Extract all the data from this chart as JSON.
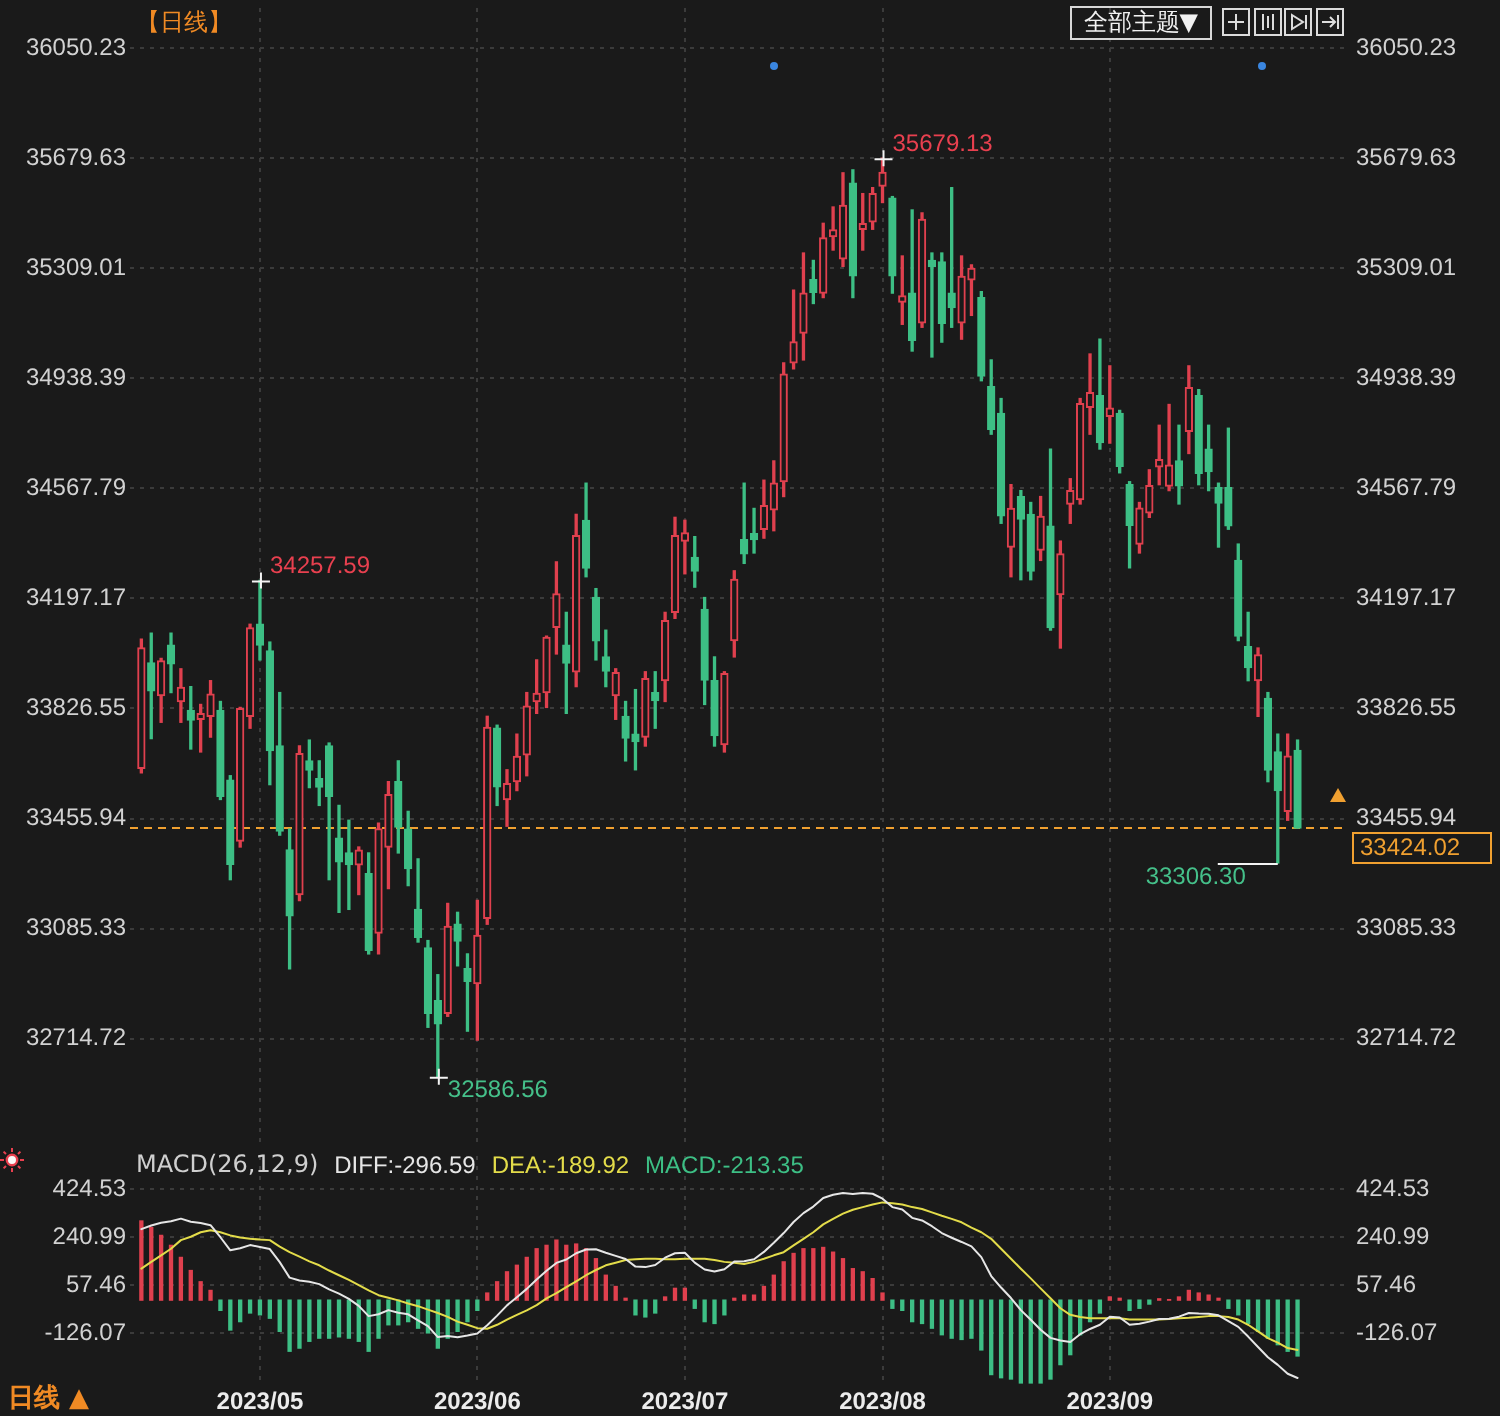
{
  "chart_data": [
    {
      "type": "candlestick",
      "title": "【日线】",
      "categories": [
        null,
        null,
        null,
        null,
        null,
        null,
        null,
        null,
        null,
        null,
        null,
        null,
        "2023/05",
        null,
        null,
        null,
        null,
        null,
        null,
        null,
        null,
        null,
        null,
        null,
        null,
        null,
        null,
        null,
        null,
        null,
        null,
        null,
        null,
        null,
        "2023/06",
        null,
        null,
        null,
        null,
        null,
        null,
        null,
        null,
        null,
        null,
        null,
        null,
        null,
        null,
        null,
        null,
        null,
        null,
        null,
        null,
        "2023/07",
        null,
        null,
        null,
        null,
        null,
        null,
        null,
        null,
        null,
        null,
        null,
        null,
        null,
        null,
        null,
        null,
        null,
        null,
        null,
        "2023/08",
        null,
        null,
        null,
        null,
        null,
        null,
        null,
        null,
        null,
        null,
        null,
        null,
        null,
        null,
        null,
        null,
        null,
        null,
        null,
        null,
        null,
        null,
        "2023/09",
        null,
        null,
        null,
        null,
        null,
        null,
        null,
        null,
        null,
        null,
        null,
        null,
        null,
        null,
        null,
        null,
        null,
        null,
        null
      ],
      "ohlc": [
        [
          33625,
          34060,
          33610,
          34030
        ],
        [
          33980,
          34080,
          33725,
          33886
        ],
        [
          33870,
          33995,
          33780,
          33987
        ],
        [
          34040,
          34080,
          33880,
          33977
        ],
        [
          33850,
          33960,
          33780,
          33897
        ],
        [
          33820,
          33900,
          33690,
          33787
        ],
        [
          33790,
          33840,
          33680,
          33809
        ],
        [
          33800,
          33920,
          33730,
          33875
        ],
        [
          33820,
          33850,
          33520,
          33531
        ],
        [
          33585,
          33600,
          33250,
          33302
        ],
        [
          33380,
          33830,
          33360,
          33826
        ],
        [
          33800,
          34110,
          33760,
          34098
        ],
        [
          34110,
          34257.59,
          33990,
          34040
        ],
        [
          34020,
          34050,
          33570,
          33685
        ],
        [
          33700,
          33880,
          33400,
          33414
        ],
        [
          33350,
          33420,
          32950,
          33128
        ],
        [
          33200,
          33700,
          33180,
          33674
        ],
        [
          33650,
          33720,
          33560,
          33619
        ],
        [
          33590,
          33650,
          33500,
          33562
        ],
        [
          33700,
          33710,
          33250,
          33531
        ],
        [
          33390,
          33500,
          33140,
          33310
        ],
        [
          33340,
          33450,
          33150,
          33301
        ],
        [
          33300,
          33360,
          33200,
          33349
        ],
        [
          33270,
          33340,
          33000,
          33012
        ],
        [
          33070,
          33440,
          33000,
          33421
        ],
        [
          33360,
          33580,
          33220,
          33536
        ],
        [
          33580,
          33650,
          33340,
          33427
        ],
        [
          33420,
          33480,
          33230,
          33287
        ],
        [
          33150,
          33320,
          33040,
          33056
        ],
        [
          33020,
          33045,
          32753,
          32800
        ],
        [
          32843,
          32930,
          32586.56,
          32765
        ],
        [
          32800,
          33170,
          32790,
          33093
        ],
        [
          33100,
          33140,
          32960,
          33043
        ],
        [
          32950,
          33000,
          32740,
          32908
        ],
        [
          32900,
          33180,
          32710,
          33062
        ],
        [
          33120,
          33800,
          33100,
          33763
        ],
        [
          33760,
          33770,
          33500,
          33563
        ],
        [
          33520,
          33620,
          33430,
          33573
        ],
        [
          33580,
          33740,
          33550,
          33665
        ],
        [
          33670,
          33880,
          33600,
          33834
        ],
        [
          33850,
          33990,
          33810,
          33877
        ],
        [
          33880,
          34070,
          33830,
          34066
        ],
        [
          34100,
          34320,
          34010,
          34212
        ],
        [
          34040,
          34150,
          33810,
          33979
        ],
        [
          33950,
          34480,
          33900,
          34408
        ],
        [
          34460,
          34585,
          34270,
          34299
        ],
        [
          34200,
          34230,
          33990,
          34054
        ],
        [
          34000,
          34090,
          33900,
          33952
        ],
        [
          33870,
          33960,
          33790,
          33947
        ],
        [
          33800,
          33850,
          33650,
          33727
        ],
        [
          33740,
          33890,
          33620,
          33715
        ],
        [
          33730,
          33950,
          33700,
          33927
        ],
        [
          33880,
          33950,
          33760,
          33853
        ],
        [
          33920,
          34150,
          33850,
          34122
        ],
        [
          34150,
          34470,
          34130,
          34408
        ],
        [
          34390,
          34460,
          34280,
          34418
        ],
        [
          34335,
          34405,
          34235,
          34289
        ],
        [
          34160,
          34200,
          33840,
          33922
        ],
        [
          33920,
          34000,
          33700,
          33735
        ],
        [
          33705,
          33950,
          33680,
          33944
        ],
        [
          34055,
          34290,
          34000,
          34261
        ],
        [
          34395,
          34585,
          34315,
          34347
        ],
        [
          34415,
          34500,
          34350,
          34395
        ],
        [
          34430,
          34595,
          34400,
          34509
        ],
        [
          34495,
          34660,
          34425,
          34585
        ],
        [
          34590,
          34990,
          34540,
          34952
        ],
        [
          34990,
          35235,
          34970,
          35061
        ],
        [
          35090,
          35360,
          35000,
          35225
        ],
        [
          35270,
          35335,
          35190,
          35228
        ],
        [
          35225,
          35460,
          35210,
          35411
        ],
        [
          35415,
          35515,
          35370,
          35438
        ],
        [
          35340,
          35630,
          35315,
          35520
        ],
        [
          35595,
          35640,
          35210,
          35283
        ],
        [
          35440,
          35560,
          35370,
          35459
        ],
        [
          35465,
          35580,
          35440,
          35560
        ],
        [
          35585,
          35679.13,
          35530,
          35631
        ],
        [
          35545,
          35550,
          35225,
          35283
        ],
        [
          35195,
          35350,
          35120,
          35216
        ],
        [
          35225,
          35505,
          35030,
          35066
        ],
        [
          35125,
          35495,
          35110,
          35473
        ],
        [
          35335,
          35360,
          35010,
          35314
        ],
        [
          35330,
          35360,
          35060,
          35123
        ],
        [
          35225,
          35580,
          35110,
          35176
        ],
        [
          35125,
          35350,
          35070,
          35281
        ],
        [
          35270,
          35320,
          35150,
          35308
        ],
        [
          35210,
          35230,
          34930,
          34946
        ],
        [
          34910,
          35000,
          34750,
          34766
        ],
        [
          34820,
          34870,
          34450,
          34475
        ],
        [
          34370,
          34580,
          34270,
          34500
        ],
        [
          34540,
          34560,
          34260,
          34464
        ],
        [
          34480,
          34520,
          34260,
          34289
        ],
        [
          34360,
          34540,
          34325,
          34473
        ],
        [
          34440,
          34700,
          34090,
          34099
        ],
        [
          34210,
          34390,
          34030,
          34347
        ],
        [
          34515,
          34600,
          34450,
          34560
        ],
        [
          34530,
          34870,
          34515,
          34853
        ],
        [
          34840,
          35020,
          34750,
          34890
        ],
        [
          34880,
          35070,
          34700,
          34722
        ],
        [
          34810,
          34980,
          34720,
          34838
        ],
        [
          34820,
          34830,
          34620,
          34642
        ],
        [
          34580,
          34590,
          34300,
          34443
        ],
        [
          34380,
          34520,
          34350,
          34501
        ],
        [
          34485,
          34630,
          34470,
          34577
        ],
        [
          34640,
          34780,
          34580,
          34664
        ],
        [
          34575,
          34850,
          34560,
          34646
        ],
        [
          34660,
          34780,
          34515,
          34576
        ],
        [
          34760,
          34980,
          34685,
          34907
        ],
        [
          34880,
          34900,
          34580,
          34618
        ],
        [
          34700,
          34780,
          34560,
          34624
        ],
        [
          34570,
          34585,
          34370,
          34518
        ],
        [
          34570,
          34770,
          34430,
          34441
        ],
        [
          34325,
          34380,
          34055,
          34070
        ],
        [
          34035,
          34150,
          33920,
          33964
        ],
        [
          33920,
          34030,
          33800,
          34007
        ],
        [
          33860,
          33880,
          33580,
          33619
        ],
        [
          33680,
          33740,
          33306.3,
          33550
        ],
        [
          33480,
          33740,
          33450,
          33666
        ],
        [
          33685,
          33720,
          33424.02,
          33424.02
        ]
      ],
      "colors": [
        "#e0404e",
        "#3dbf85",
        "#e0404e",
        "#3dbf85",
        "#e0404e",
        "#3dbf85",
        "#e0404e",
        "#e0404e",
        "#3dbf85",
        "#3dbf85",
        "#e0404e",
        "#e0404e",
        "#3dbf85",
        "#3dbf85",
        "#3dbf85",
        "#3dbf85",
        "#e0404e",
        "#3dbf85",
        "#3dbf85",
        "#3dbf85",
        "#3dbf85",
        "#3dbf85",
        "#e0404e",
        "#3dbf85",
        "#e0404e",
        "#e0404e",
        "#3dbf85",
        "#3dbf85",
        "#3dbf85",
        "#3dbf85",
        "#3dbf85",
        "#e0404e",
        "#3dbf85",
        "#3dbf85",
        "#e0404e",
        "#e0404e",
        "#3dbf85",
        "#e0404e",
        "#e0404e",
        "#e0404e",
        "#e0404e",
        "#e0404e",
        "#e0404e",
        "#3dbf85",
        "#e0404e",
        "#3dbf85",
        "#3dbf85",
        "#3dbf85",
        "#e0404e",
        "#3dbf85",
        "#3dbf85",
        "#e0404e",
        "#3dbf85",
        "#e0404e",
        "#e0404e",
        "#e0404e",
        "#3dbf85",
        "#3dbf85",
        "#3dbf85",
        "#e0404e",
        "#e0404e",
        "#3dbf85",
        "#3dbf85",
        "#e0404e",
        "#e0404e",
        "#e0404e",
        "#e0404e",
        "#e0404e",
        "#3dbf85",
        "#e0404e",
        "#e0404e",
        "#e0404e",
        "#3dbf85",
        "#e0404e",
        "#e0404e",
        "#e0404e",
        "#3dbf85",
        "#e0404e",
        "#3dbf85",
        "#e0404e",
        "#3dbf85",
        "#3dbf85",
        "#3dbf85",
        "#e0404e",
        "#e0404e",
        "#3dbf85",
        "#3dbf85",
        "#3dbf85",
        "#e0404e",
        "#3dbf85",
        "#3dbf85",
        "#e0404e",
        "#3dbf85",
        "#e0404e",
        "#e0404e",
        "#e0404e",
        "#e0404e",
        "#3dbf85",
        "#e0404e",
        "#3dbf85",
        "#3dbf85",
        "#e0404e",
        "#e0404e",
        "#e0404e",
        "#e0404e",
        "#3dbf85",
        "#e0404e",
        "#3dbf85",
        "#3dbf85",
        "#3dbf85",
        "#3dbf85",
        "#3dbf85",
        "#3dbf85",
        "#e0404e",
        "#3dbf85",
        "#3dbf85",
        "#e0404e",
        "#3dbf85"
      ],
      "ylim": [
        32360,
        36185
      ],
      "yticks": [
        36050.23,
        35679.63,
        35309.01,
        34938.39,
        34567.79,
        34197.17,
        33826.55,
        33455.94,
        33085.33,
        32714.72
      ],
      "y2lim": [
        32360,
        36185
      ],
      "y2ticks": [
        36050.23,
        35679.63,
        35309.01,
        34938.39,
        34567.79,
        34197.17,
        33826.55,
        33455.94,
        33085.33,
        32714.72
      ],
      "grid": true,
      "tick_labels": "y",
      "ref_lines": [
        {
          "axis": "y",
          "value": 33424.02,
          "label": "33424.02",
          "color": "#f0a030",
          "line_style": "dashed"
        }
      ],
      "annotations": [
        "34257.59",
        "35679.13",
        "32586.56",
        "33306.30",
        "全部主题▼"
      ]
    },
    {
      "type": "bar",
      "title": "MACD(26,12,9)",
      "categories": [
        null,
        null,
        null,
        null,
        null,
        null,
        null,
        null,
        null,
        null,
        null,
        null,
        "2023/05",
        null,
        null,
        null,
        null,
        null,
        null,
        null,
        null,
        null,
        null,
        null,
        null,
        null,
        null,
        null,
        null,
        null,
        null,
        null,
        null,
        null,
        "2023/06",
        null,
        null,
        null,
        null,
        null,
        null,
        null,
        null,
        null,
        null,
        null,
        null,
        null,
        null,
        null,
        null,
        null,
        null,
        null,
        null,
        "2023/07",
        null,
        null,
        null,
        null,
        null,
        null,
        null,
        null,
        null,
        null,
        null,
        null,
        null,
        null,
        null,
        null,
        null,
        null,
        null,
        "2023/08",
        null,
        null,
        null,
        null,
        null,
        null,
        null,
        null,
        null,
        null,
        null,
        null,
        null,
        null,
        null,
        null,
        null,
        null,
        null,
        null,
        null,
        null,
        "2023/09",
        null,
        null,
        null,
        null,
        null,
        null,
        null,
        null,
        null,
        null,
        null,
        null,
        null,
        null,
        null,
        null,
        null,
        null,
        null
      ],
      "series": [
        {
          "name": "DIFF:-296.59",
          "type": "line",
          "color": "#e6e6e6",
          "values": [
            271,
            285,
            295,
            301,
            311,
            299,
            294,
            286,
            240,
            190,
            198,
            210,
            203,
            195,
            145,
            86,
            75,
            70,
            61,
            41,
            25,
            5,
            -22,
            -61,
            -54,
            -38,
            -48,
            -54,
            -77,
            -99,
            -141,
            -137,
            -142,
            -135,
            -127,
            -96,
            -59,
            -20,
            11,
            43,
            79,
            112,
            142,
            155,
            179,
            193,
            194,
            181,
            169,
            157,
            128,
            126,
            134,
            162,
            179,
            181,
            143,
            117,
            109,
            118,
            147,
            148,
            156,
            184,
            219,
            256,
            298,
            332,
            357,
            390,
            402,
            409,
            405,
            409,
            406,
            387,
            355,
            346,
            314,
            304,
            282,
            256,
            238,
            222,
            205,
            164,
            92,
            48,
            8,
            -38,
            -75,
            -113,
            -144,
            -154,
            -160,
            -130,
            -110,
            -94,
            -63,
            -66,
            -94,
            -90,
            -82,
            -72,
            -71,
            -63,
            -49,
            -51,
            -52,
            -58,
            -80,
            -102,
            -139,
            -179,
            -218,
            -247,
            -281,
            -297
          ]
        },
        {
          "name": "DEA:-189.92",
          "type": "line",
          "color": "#e3dc4a",
          "values": [
            120,
            146,
            171,
            196,
            229,
            242,
            259,
            267,
            259,
            247,
            239,
            234,
            231,
            229,
            204,
            183,
            166,
            148,
            133,
            113,
            95,
            77,
            57,
            37,
            19,
            9,
            -1,
            -13,
            -23,
            -36,
            -49,
            -64,
            -82,
            -94,
            -107,
            -109,
            -94,
            -74,
            -56,
            -39,
            -19,
            7,
            27,
            50,
            72,
            95,
            115,
            133,
            143,
            153,
            156,
            158,
            158,
            156,
            156,
            158,
            158,
            158,
            153,
            146,
            143,
            138,
            146,
            158,
            171,
            183,
            209,
            234,
            259,
            289,
            310,
            330,
            345,
            355,
            365,
            373,
            370,
            365,
            355,
            348,
            335,
            322,
            310,
            297,
            277,
            259,
            234,
            196,
            158,
            120,
            83,
            45,
            7,
            -31,
            -56,
            -64,
            -69,
            -69,
            -69,
            -69,
            -74,
            -74,
            -74,
            -74,
            -72,
            -69,
            -67,
            -64,
            -61,
            -61,
            -64,
            -74,
            -94,
            -119,
            -145,
            -162,
            -183,
            -190
          ]
        },
        {
          "name": "MACD:-213.35",
          "type": "bar",
          "colors": [
            "#e0404e",
            "#e0404e",
            "#e0404e",
            "#e0404e",
            "#e0404e",
            "#e0404e",
            "#e0404e",
            "#e0404e",
            "#3dbf85",
            "#3dbf85",
            "#3dbf85",
            "#3dbf85",
            "#3dbf85",
            "#3dbf85",
            "#3dbf85",
            "#3dbf85",
            "#3dbf85",
            "#3dbf85",
            "#3dbf85",
            "#3dbf85",
            "#3dbf85",
            "#3dbf85",
            "#3dbf85",
            "#3dbf85",
            "#3dbf85",
            "#3dbf85",
            "#3dbf85",
            "#3dbf85",
            "#3dbf85",
            "#3dbf85",
            "#3dbf85",
            "#3dbf85",
            "#3dbf85",
            "#3dbf85",
            "#3dbf85",
            "#e0404e",
            "#e0404e",
            "#e0404e",
            "#e0404e",
            "#e0404e",
            "#e0404e",
            "#e0404e",
            "#e0404e",
            "#e0404e",
            "#e0404e",
            "#e0404e",
            "#e0404e",
            "#e0404e",
            "#e0404e",
            "#e0404e",
            "#3dbf85",
            "#3dbf85",
            "#3dbf85",
            "#e0404e",
            "#e0404e",
            "#e0404e",
            "#3dbf85",
            "#3dbf85",
            "#3dbf85",
            "#3dbf85",
            "#e0404e",
            "#e0404e",
            "#e0404e",
            "#e0404e",
            "#e0404e",
            "#e0404e",
            "#e0404e",
            "#e0404e",
            "#e0404e",
            "#e0404e",
            "#e0404e",
            "#e0404e",
            "#e0404e",
            "#e0404e",
            "#e0404e",
            "#e0404e",
            "#3dbf85",
            "#3dbf85",
            "#3dbf85",
            "#3dbf85",
            "#3dbf85",
            "#3dbf85",
            "#3dbf85",
            "#3dbf85",
            "#3dbf85",
            "#3dbf85",
            "#3dbf85",
            "#3dbf85",
            "#3dbf85",
            "#3dbf85",
            "#3dbf85",
            "#3dbf85",
            "#3dbf85",
            "#3dbf85",
            "#3dbf85",
            "#3dbf85",
            "#3dbf85",
            "#3dbf85",
            "#e0404e",
            "#e0404e",
            "#3dbf85",
            "#3dbf85",
            "#3dbf85",
            "#e0404e",
            "#e0404e",
            "#e0404e",
            "#e0404e",
            "#e0404e",
            "#e0404e",
            "#e0404e",
            "#3dbf85",
            "#3dbf85",
            "#3dbf85",
            "#3dbf85",
            "#3dbf85",
            "#3dbf85",
            "#3dbf85",
            "#3dbf85"
          ],
          "values": [
            302,
            277,
            247,
            209,
            163,
            113,
            70,
            37,
            -39,
            -114,
            -82,
            -49,
            -56,
            -69,
            -119,
            -195,
            -183,
            -157,
            -145,
            -145,
            -140,
            -145,
            -157,
            -195,
            -145,
            -94,
            -94,
            -82,
            -107,
            -125,
            -183,
            -145,
            -119,
            -82,
            -39,
            27,
            70,
            108,
            133,
            163,
            196,
            209,
            229,
            209,
            214,
            196,
            158,
            95,
            52,
            7,
            -56,
            -64,
            -49,
            12,
            45,
            45,
            -31,
            -82,
            -89,
            -56,
            7,
            19,
            19,
            52,
            95,
            146,
            178,
            196,
            196,
            201,
            183,
            158,
            120,
            108,
            82,
            27,
            -31,
            -39,
            -82,
            -89,
            -107,
            -132,
            -145,
            -150,
            -145,
            -190,
            -284,
            -296,
            -301,
            -316,
            -316,
            -316,
            -301,
            -246,
            -208,
            -132,
            -82,
            -49,
            12,
            7,
            -39,
            -31,
            -15,
            5,
            2,
            12,
            37,
            27,
            19,
            7,
            -31,
            -56,
            -89,
            -119,
            -145,
            -170,
            -195,
            -213
          ]
        }
      ],
      "ylim": [
        -320,
        550
      ],
      "yticks": [
        424.53,
        240.99,
        57.46,
        -126.07
      ],
      "y2lim": [
        -320,
        550
      ],
      "y2ticks": [
        424.53,
        240.99,
        57.46,
        -126.07
      ],
      "grid": true,
      "marker": "none",
      "annotations": [
        "日线 ▲"
      ]
    }
  ]
}
